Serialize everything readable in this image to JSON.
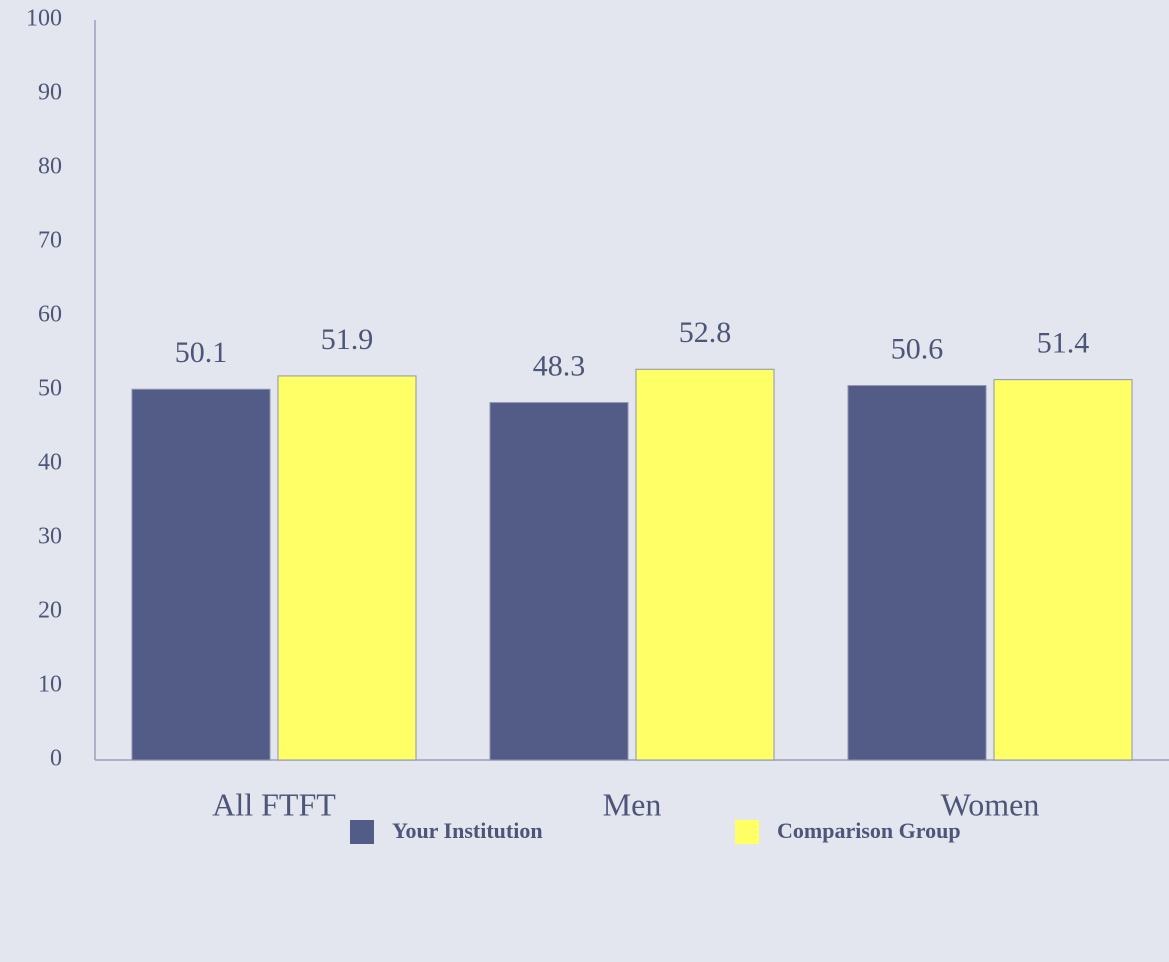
{
  "chart_data": {
    "type": "bar",
    "categories": [
      "All FTFT",
      "Men",
      "Women"
    ],
    "series": [
      {
        "name": "Your Institution",
        "color": "#525c86",
        "values": [
          50.1,
          48.3,
          50.6
        ]
      },
      {
        "name": "Comparison Group",
        "color": "#ffff66",
        "values": [
          51.9,
          52.8,
          51.4
        ]
      }
    ],
    "ylim": [
      0,
      100
    ],
    "yticks": [
      0,
      10,
      20,
      30,
      40,
      50,
      60,
      70,
      80,
      90,
      100
    ],
    "grid": false,
    "legend": "bottom"
  }
}
